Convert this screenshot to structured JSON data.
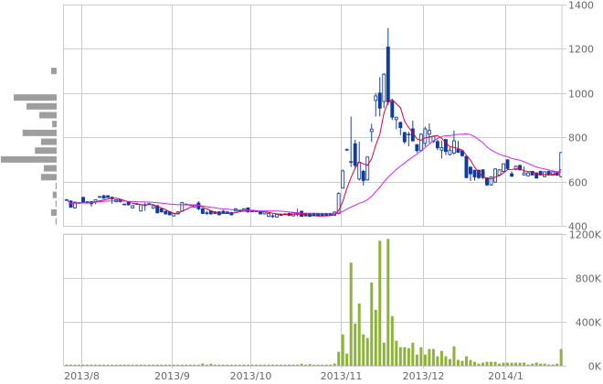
{
  "chart_data": {
    "type": "candlestick",
    "grid": true,
    "price_axis": {
      "range": [
        400,
        1400
      ],
      "ticks": [
        400,
        600,
        800,
        1000,
        1200,
        1400
      ],
      "position": "right"
    },
    "volume_axis": {
      "range": [
        0,
        1200
      ],
      "tick_values": [
        0,
        400,
        800,
        1200
      ],
      "tick_labels": [
        "0K",
        "400K",
        "800K",
        "1200K"
      ],
      "unit": "K",
      "position": "right"
    },
    "x_ticks": [
      {
        "label": "2013/8",
        "index": 4
      },
      {
        "label": "2013/9",
        "index": 26
      },
      {
        "label": "2013/10",
        "index": 45
      },
      {
        "label": "2013/11",
        "index": 67
      },
      {
        "label": "2013/12",
        "index": 87
      },
      {
        "label": "2014/1",
        "index": 107
      }
    ],
    "candle_format": [
      "open",
      "high",
      "low",
      "close"
    ],
    "candles": [
      [
        518,
        522,
        514,
        518
      ],
      [
        512,
        516,
        482,
        484
      ],
      [
        481,
        510,
        478,
        507
      ],
      [
        505,
        508,
        502,
        505
      ],
      [
        528,
        532,
        505,
        507
      ],
      [
        509,
        512,
        506,
        509
      ],
      [
        509,
        512,
        487,
        500
      ],
      [
        509,
        520,
        498,
        518
      ],
      [
        532,
        535,
        529,
        532
      ],
      [
        536,
        540,
        522,
        525
      ],
      [
        536,
        538,
        526,
        528
      ],
      [
        529,
        532,
        500,
        522
      ],
      [
        509,
        520,
        506,
        518
      ],
      [
        518,
        521,
        506,
        509
      ],
      [
        498,
        501,
        495,
        498
      ],
      [
        509,
        512,
        492,
        495
      ],
      [
        481,
        494,
        478,
        491
      ],
      [
        500,
        503,
        497,
        500
      ],
      [
        467,
        497,
        465,
        495
      ],
      [
        495,
        505,
        468,
        495
      ],
      [
        500,
        503,
        497,
        500
      ],
      [
        480,
        494,
        477,
        491
      ],
      [
        491,
        494,
        456,
        459
      ],
      [
        477,
        480,
        460,
        463
      ],
      [
        466,
        469,
        451,
        454
      ],
      [
        463,
        466,
        447,
        450
      ],
      [
        445,
        459,
        442,
        456
      ],
      [
        454,
        466,
        451,
        463
      ],
      [
        467,
        508,
        464,
        505
      ],
      [
        498,
        501,
        495,
        498
      ],
      [
        495,
        498,
        492,
        495
      ],
      [
        484,
        497,
        481,
        495
      ],
      [
        503,
        512,
        470,
        477
      ],
      [
        477,
        480,
        453,
        456
      ],
      [
        459,
        467,
        449,
        459
      ],
      [
        467,
        470,
        451,
        454
      ],
      [
        463,
        466,
        453,
        456
      ],
      [
        463,
        466,
        447,
        450
      ],
      [
        466,
        472,
        456,
        459
      ],
      [
        463,
        466,
        460,
        463
      ],
      [
        460,
        463,
        447,
        450
      ],
      [
        467,
        480,
        464,
        477
      ],
      [
        470,
        473,
        467,
        470
      ],
      [
        467,
        480,
        464,
        477
      ],
      [
        481,
        484,
        460,
        463
      ],
      [
        467,
        470,
        464,
        467
      ],
      [
        467,
        470,
        464,
        467
      ],
      [
        463,
        466,
        451,
        454
      ],
      [
        454,
        466,
        451,
        463
      ],
      [
        443,
        459,
        440,
        456
      ],
      [
        445,
        453,
        436,
        445
      ],
      [
        440,
        455,
        437,
        452
      ],
      [
        450,
        453,
        447,
        450
      ],
      [
        454,
        457,
        451,
        454
      ],
      [
        456,
        459,
        444,
        447
      ],
      [
        445,
        462,
        442,
        459
      ],
      [
        456,
        477,
        443,
        456
      ],
      [
        466,
        469,
        440,
        443
      ],
      [
        456,
        459,
        442,
        445
      ],
      [
        456,
        459,
        440,
        443
      ],
      [
        456,
        459,
        443,
        445
      ],
      [
        456,
        459,
        443,
        445
      ],
      [
        456,
        459,
        443,
        445
      ],
      [
        456,
        459,
        444,
        447
      ],
      [
        456,
        459,
        445,
        448
      ],
      [
        448,
        466,
        444,
        462
      ],
      [
        455,
        552,
        452,
        546
      ],
      [
        571,
        655,
        568,
        648
      ],
      [
        745,
        750,
        742,
        745
      ],
      [
        690,
        894,
        666,
        690
      ],
      [
        771,
        789,
        662,
        673
      ],
      [
        612,
        780,
        604,
        687
      ],
      [
        646,
        653,
        582,
        605
      ],
      [
        608,
        713,
        604,
        711
      ],
      [
        826,
        861,
        779,
        837
      ],
      [
        967,
        1000,
        894,
        987
      ],
      [
        1000,
        1072,
        894,
        932
      ],
      [
        962,
        1090,
        932,
        1085
      ],
      [
        1208,
        1294,
        946,
        960
      ],
      [
        962,
        973,
        878,
        891
      ],
      [
        880,
        893,
        837,
        891
      ],
      [
        867,
        871,
        810,
        844
      ],
      [
        821,
        826,
        770,
        780
      ],
      [
        814,
        825,
        759,
        814
      ],
      [
        838,
        875,
        781,
        784
      ],
      [
        767,
        770,
        730,
        740
      ],
      [
        740,
        818,
        735,
        814
      ],
      [
        773,
        848,
        759,
        838
      ],
      [
        814,
        863,
        773,
        831
      ],
      [
        781,
        808,
        775,
        804
      ],
      [
        781,
        790,
        742,
        753
      ],
      [
        742,
        784,
        704,
        753
      ],
      [
        790,
        793,
        720,
        736
      ],
      [
        722,
        756,
        718,
        742
      ],
      [
        729,
        831,
        722,
        784
      ],
      [
        745,
        784,
        730,
        732
      ],
      [
        739,
        742,
        712,
        717
      ],
      [
        714,
        717,
        615,
        618
      ],
      [
        665,
        668,
        603,
        635
      ],
      [
        651,
        654,
        605,
        621
      ],
      [
        651,
        654,
        612,
        618
      ],
      [
        653,
        656,
        612,
        618
      ],
      [
        616,
        619,
        580,
        585
      ],
      [
        585,
        624,
        582,
        621
      ],
      [
        598,
        660,
        595,
        657
      ],
      [
        629,
        656,
        624,
        653
      ],
      [
        646,
        683,
        642,
        680
      ],
      [
        698,
        701,
        655,
        659
      ],
      [
        635,
        646,
        622,
        624
      ],
      [
        655,
        673,
        651,
        669
      ],
      [
        673,
        676,
        650,
        653
      ],
      [
        630,
        668,
        627,
        639
      ],
      [
        626,
        642,
        623,
        639
      ],
      [
        646,
        649,
        627,
        630
      ],
      [
        639,
        642,
        613,
        616
      ],
      [
        646,
        649,
        627,
        630
      ],
      [
        622,
        647,
        619,
        644
      ],
      [
        646,
        649,
        627,
        630
      ],
      [
        629,
        647,
        626,
        644
      ],
      [
        644,
        647,
        626,
        629
      ],
      [
        622,
        734,
        619,
        731
      ]
    ],
    "volume": [
      10,
      10,
      10,
      10,
      10,
      10,
      10,
      10,
      10,
      10,
      10,
      10,
      10,
      10,
      10,
      10,
      10,
      10,
      10,
      10,
      10,
      10,
      10,
      10,
      10,
      10,
      10,
      10,
      10,
      10,
      10,
      10,
      10,
      20,
      10,
      18,
      10,
      10,
      10,
      10,
      10,
      10,
      10,
      10,
      10,
      10,
      10,
      10,
      10,
      10,
      10,
      10,
      10,
      10,
      10,
      10,
      10,
      18,
      10,
      15,
      10,
      10,
      10,
      10,
      10,
      20,
      127,
      285,
      110,
      940,
      384,
      567,
      285,
      252,
      758,
      509,
      1139,
      210,
      1156,
      451,
      227,
      169,
      169,
      160,
      210,
      102,
      169,
      102,
      152,
      152,
      86,
      135,
      86,
      61,
      177,
      53,
      44,
      86,
      53,
      36,
      19,
      28,
      36,
      36,
      36,
      19,
      28,
      28,
      28,
      28,
      28,
      28,
      11,
      19,
      28,
      19,
      19,
      11,
      11,
      19,
      152
    ],
    "moving_averages": [
      {
        "period": 5,
        "color": "#e0003c"
      },
      {
        "period": 25,
        "color": "#cc22ff"
      }
    ],
    "volume_profile": [
      {
        "price": 1100,
        "relative": 10
      },
      {
        "price": 980,
        "relative": 77
      },
      {
        "price": 940,
        "relative": 54
      },
      {
        "price": 900,
        "relative": 31
      },
      {
        "price": 860,
        "relative": 8
      },
      {
        "price": 820,
        "relative": 61
      },
      {
        "price": 780,
        "relative": 28
      },
      {
        "price": 740,
        "relative": 39
      },
      {
        "price": 700,
        "relative": 100
      },
      {
        "price": 660,
        "relative": 23
      },
      {
        "price": 620,
        "relative": 28
      },
      {
        "price": 580,
        "relative": 2
      },
      {
        "price": 540,
        "relative": 7
      },
      {
        "price": 500,
        "relative": 2
      },
      {
        "price": 460,
        "relative": 10
      },
      {
        "price": 420,
        "relative": 2
      }
    ],
    "colors": {
      "up_border": "#1a44a8",
      "up_fill": "#fffbe6",
      "down_fill": "#0e3c9e",
      "volume": "#8db33a",
      "volume_profile": "#9e9e9e",
      "grid": "#cccccc",
      "label": "#666666"
    }
  }
}
